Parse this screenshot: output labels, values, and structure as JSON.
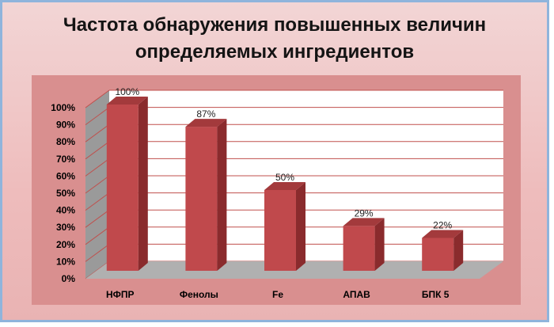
{
  "chart_data": {
    "type": "bar",
    "title_line1": "Частота обнаружения повышенных величин",
    "title_line2": "определяемых ингредиентов",
    "categories": [
      "НФПР",
      "Фенолы",
      "Fe",
      "АПАВ",
      "БПК 5"
    ],
    "values": [
      100,
      87,
      50,
      29,
      22
    ],
    "data_labels": [
      "100%",
      "87%",
      "50%",
      "29%",
      "22%"
    ],
    "y_ticks": [
      "0%",
      "10%",
      "20%",
      "30%",
      "40%",
      "50%",
      "60%",
      "70%",
      "80%",
      "90%",
      "100%"
    ],
    "ylim": [
      0,
      100
    ],
    "grid": true,
    "colors": {
      "bar_front": "#c0494c",
      "bar_side": "#8a2b2d",
      "bar_top": "#a33a3c",
      "plot_area": "#d98f8f",
      "back_wall": "#ffffff",
      "side_wall": "#9a9a9a",
      "floor": "#b0b0b0",
      "gridline": "#c0504d"
    }
  }
}
